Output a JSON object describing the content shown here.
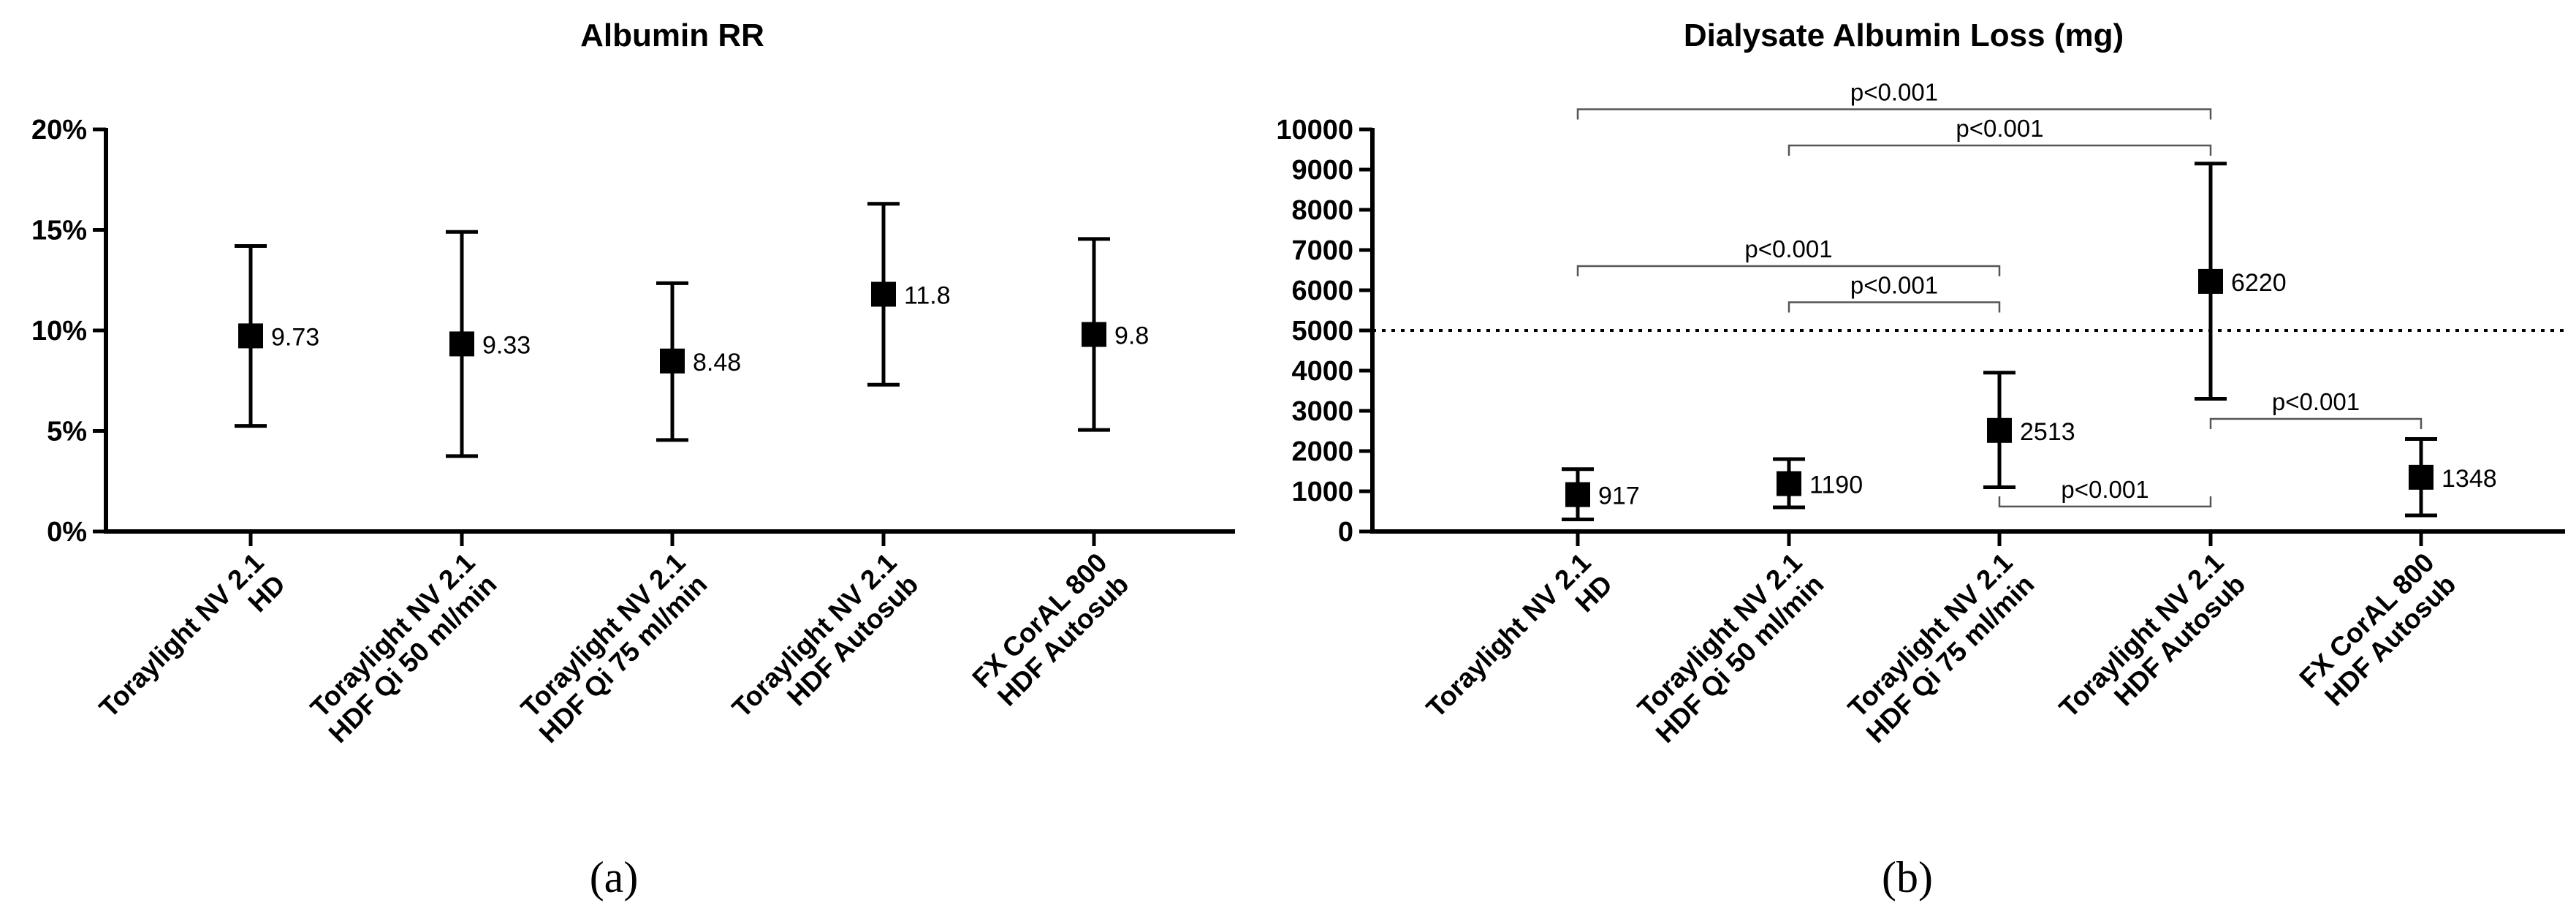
{
  "chart_data": [
    {
      "type": "scatter",
      "title": "Albumin RR",
      "panel_label": "(a)",
      "ylim": [
        0,
        20
      ],
      "yticks": [
        0,
        5,
        10,
        15,
        20
      ],
      "ytick_labels": [
        "0%",
        "5%",
        "10%",
        "15%",
        "20%"
      ],
      "categories": [
        [
          "Toraylight NV 2.1",
          "HD"
        ],
        [
          "Toraylight NV 2.1",
          "HDF Qi 50 ml/min"
        ],
        [
          "Toraylight NV 2.1",
          "HDF Qi 75 ml/min"
        ],
        [
          "Toraylight NV 2.1",
          "HDF Autosub"
        ],
        [
          "FX CorAL 800",
          "HDF Autosub"
        ]
      ],
      "values": [
        9.73,
        9.33,
        8.48,
        11.8,
        9.8
      ],
      "value_labels": [
        "9.73",
        "9.33",
        "8.48",
        "11.8",
        "9.8"
      ],
      "err_low": [
        5.25,
        3.75,
        4.55,
        7.3,
        5.05
      ],
      "err_high": [
        14.2,
        14.9,
        12.35,
        16.3,
        14.55
      ],
      "grid": false
    },
    {
      "type": "scatter",
      "title": "Dialysate Albumin Loss (mg)",
      "panel_label": "(b)",
      "ylim": [
        0,
        10000
      ],
      "yticks": [
        0,
        1000,
        2000,
        3000,
        4000,
        5000,
        6000,
        7000,
        8000,
        9000,
        10000
      ],
      "ytick_labels": [
        "0",
        "1000",
        "2000",
        "3000",
        "4000",
        "5000",
        "6000",
        "7000",
        "8000",
        "9000",
        "10000"
      ],
      "categories": [
        [
          "Toraylight NV 2.1",
          "HD"
        ],
        [
          "Toraylight NV 2.1",
          "HDF Qi 50 ml/min"
        ],
        [
          "Toraylight NV 2.1",
          "HDF Qi 75 ml/min"
        ],
        [
          "Toraylight NV 2.1",
          "HDF Autosub"
        ],
        [
          "FX CorAL 800",
          "HDF Autosub"
        ]
      ],
      "values": [
        917,
        1190,
        2513,
        6220,
        1348
      ],
      "value_labels": [
        "917",
        "1190",
        "2513",
        "6220",
        "1348"
      ],
      "err_low": [
        300,
        600,
        1100,
        3300,
        400
      ],
      "err_high": [
        1550,
        1800,
        3950,
        9150,
        2300
      ],
      "reference_line": 5000,
      "grid": false,
      "comparisons": [
        {
          "from": 0,
          "to": 3,
          "level": 10500,
          "label": "p<0.001"
        },
        {
          "from": 1,
          "to": 3,
          "level": 9600,
          "label": "p<0.001"
        },
        {
          "from": 0,
          "to": 2,
          "level": 6600,
          "label": "p<0.001"
        },
        {
          "from": 1,
          "to": 2,
          "level": 5700,
          "label": "p<0.001"
        },
        {
          "from": 3,
          "to": 4,
          "level": 2800,
          "label": "p<0.001",
          "direction": "down"
        },
        {
          "from": 2,
          "to": 3,
          "level": 620,
          "label": "p<0.001",
          "direction": "up"
        }
      ]
    }
  ]
}
